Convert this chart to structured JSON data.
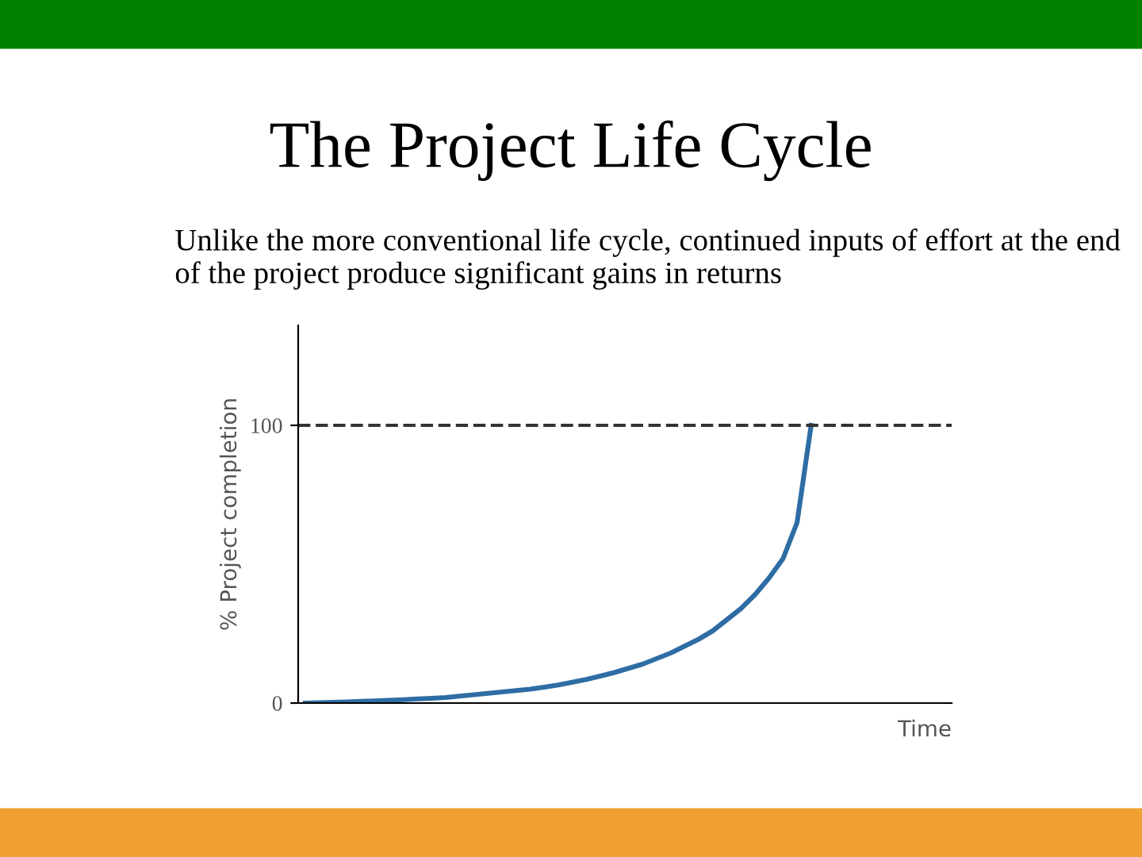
{
  "chart_data": {
    "type": "line",
    "title": "The Project Life Cycle",
    "subtitle": "Unlike the more conventional life cycle, continued inputs of effort at the end of the project produce significant gains in returns",
    "xlabel": "Time",
    "ylabel": "% Project completion",
    "categories": [
      null,
      null,
      null,
      null,
      null,
      null,
      null,
      null,
      null,
      null,
      null,
      null,
      null,
      null,
      null,
      null,
      null,
      null,
      null,
      null,
      null,
      null,
      null,
      null,
      null,
      null,
      null,
      null,
      null,
      null,
      null,
      null,
      null,
      null,
      null,
      null,
      null,
      null,
      null,
      null,
      null,
      null,
      null,
      null,
      null,
      null,
      null
    ],
    "series": [
      {
        "color": "#2e6da4",
        "values": [
          0,
          0.1,
          0.3,
          0.4,
          0.6,
          0.8,
          1,
          1.2,
          1.5,
          1.7,
          2,
          2.5,
          3,
          3.5,
          4,
          4.5,
          5,
          5.7,
          6.5,
          7.5,
          8.5,
          9.7,
          11,
          12.5,
          14,
          16,
          18,
          20.5,
          23,
          26,
          30,
          34,
          39,
          45,
          52,
          65,
          100,
          null,
          null,
          null,
          null,
          null,
          null,
          null,
          null,
          null,
          null
        ]
      }
    ],
    "ylim": [
      0,
      136
    ],
    "yticks": [
      0,
      100
    ],
    "ref_lines": [
      {
        "axis": "y",
        "value": 100,
        "color": "#333333",
        "line_style": "dashed"
      }
    ],
    "grid": false,
    "legend": false,
    "marker": "none",
    "line_style": "solid"
  }
}
